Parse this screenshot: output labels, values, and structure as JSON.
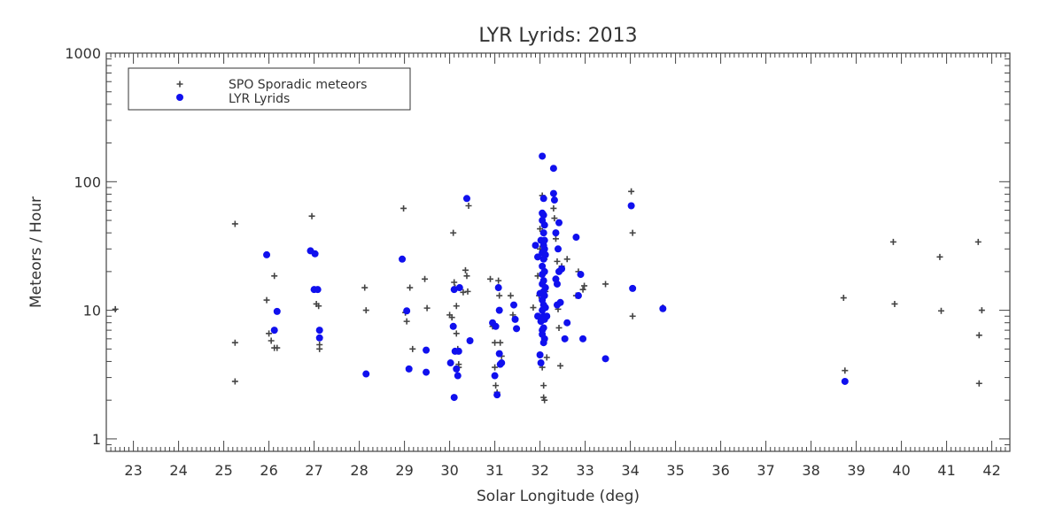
{
  "chart_data": {
    "type": "scatter",
    "title": "LYR Lyrids: 2013",
    "xlabel": "Solar Longitude (deg)",
    "ylabel": "Meteors / Hour",
    "xlim": [
      22.4,
      42.4
    ],
    "ylim": [
      0.8,
      1000
    ],
    "yscale": "log",
    "x_ticks": [
      23,
      24,
      25,
      26,
      27,
      28,
      29,
      30,
      31,
      32,
      33,
      34,
      35,
      36,
      37,
      38,
      39,
      40,
      41,
      42
    ],
    "y_ticks": [
      {
        "value": 1,
        "label": "1"
      },
      {
        "value": 10,
        "label": "10"
      },
      {
        "value": 100,
        "label": "100"
      },
      {
        "value": 1000,
        "label": "1000"
      }
    ],
    "legend_position": "top-left",
    "series": [
      {
        "name": "SPO Sporadic meteors",
        "marker": "plus",
        "color": "#444444",
        "points": [
          [
            22.6,
            10.2
          ],
          [
            25.25,
            47
          ],
          [
            25.25,
            5.6
          ],
          [
            25.25,
            2.8
          ],
          [
            25.95,
            12
          ],
          [
            26.0,
            6.6
          ],
          [
            26.05,
            5.8
          ],
          [
            26.12,
            18.5
          ],
          [
            26.12,
            5.1
          ],
          [
            26.18,
            5.1
          ],
          [
            26.95,
            54
          ],
          [
            27.02,
            14.5
          ],
          [
            27.05,
            11.2
          ],
          [
            27.1,
            10.8
          ],
          [
            27.12,
            5.4
          ],
          [
            27.12,
            5.0
          ],
          [
            28.12,
            15
          ],
          [
            28.15,
            10
          ],
          [
            28.98,
            62
          ],
          [
            29.02,
            9.6
          ],
          [
            29.05,
            8.2
          ],
          [
            29.12,
            15
          ],
          [
            29.18,
            5
          ],
          [
            29.45,
            17.5
          ],
          [
            29.5,
            10.4
          ],
          [
            30.0,
            9.2
          ],
          [
            30.05,
            8.8
          ],
          [
            30.08,
            40
          ],
          [
            30.1,
            16.5
          ],
          [
            30.12,
            15
          ],
          [
            30.15,
            10.8
          ],
          [
            30.15,
            6.6
          ],
          [
            30.18,
            5
          ],
          [
            30.2,
            3.8
          ],
          [
            30.2,
            3.6
          ],
          [
            30.3,
            13.8
          ],
          [
            30.35,
            20.5
          ],
          [
            30.38,
            18.5
          ],
          [
            30.4,
            14
          ],
          [
            30.42,
            65
          ],
          [
            30.9,
            17.5
          ],
          [
            30.95,
            7.5
          ],
          [
            31.0,
            5.6
          ],
          [
            31.0,
            3.6
          ],
          [
            31.02,
            2.6
          ],
          [
            31.05,
            2.3
          ],
          [
            31.08,
            17
          ],
          [
            31.1,
            13
          ],
          [
            31.12,
            5.6
          ],
          [
            31.15,
            4.4
          ],
          [
            31.35,
            13
          ],
          [
            31.4,
            9.2
          ],
          [
            31.85,
            10.5
          ],
          [
            31.9,
            32
          ],
          [
            31.95,
            18.5
          ],
          [
            31.98,
            13
          ],
          [
            32.0,
            43
          ],
          [
            32.0,
            30
          ],
          [
            32.02,
            8.5
          ],
          [
            32.05,
            78
          ],
          [
            32.05,
            6.4
          ],
          [
            32.05,
            3.6
          ],
          [
            32.08,
            2.6
          ],
          [
            32.08,
            2.1
          ],
          [
            32.1,
            2.0
          ],
          [
            32.1,
            25
          ],
          [
            32.12,
            14
          ],
          [
            32.15,
            4.3
          ],
          [
            32.3,
            62
          ],
          [
            32.32,
            52
          ],
          [
            32.35,
            36
          ],
          [
            32.38,
            24
          ],
          [
            32.4,
            10.2
          ],
          [
            32.42,
            7.3
          ],
          [
            32.45,
            3.7
          ],
          [
            32.48,
            22
          ],
          [
            32.6,
            25
          ],
          [
            32.8,
            13
          ],
          [
            32.85,
            20
          ],
          [
            32.9,
            19
          ],
          [
            32.95,
            14.5
          ],
          [
            32.98,
            15.5
          ],
          [
            33.45,
            16
          ],
          [
            34.02,
            84
          ],
          [
            34.05,
            40
          ],
          [
            34.05,
            9
          ],
          [
            34.72,
            10.5
          ],
          [
            38.72,
            12.5
          ],
          [
            38.75,
            3.4
          ],
          [
            39.82,
            34
          ],
          [
            39.85,
            11.2
          ],
          [
            40.85,
            26
          ],
          [
            40.88,
            9.9
          ],
          [
            41.7,
            34
          ],
          [
            41.72,
            6.4
          ],
          [
            41.72,
            2.7
          ],
          [
            41.78,
            10
          ]
        ]
      },
      {
        "name": "LYR Lyrids",
        "marker": "circle",
        "color": "#1010ee",
        "points": [
          [
            25.95,
            27
          ],
          [
            26.12,
            7
          ],
          [
            26.18,
            9.8
          ],
          [
            26.92,
            29
          ],
          [
            27.0,
            14.5
          ],
          [
            27.02,
            27.5
          ],
          [
            27.08,
            14.5
          ],
          [
            27.12,
            7
          ],
          [
            27.12,
            6.1
          ],
          [
            28.15,
            3.2
          ],
          [
            28.95,
            25
          ],
          [
            29.05,
            9.9
          ],
          [
            29.1,
            3.5
          ],
          [
            29.48,
            4.9
          ],
          [
            29.48,
            3.3
          ],
          [
            30.02,
            3.9
          ],
          [
            30.08,
            7.5
          ],
          [
            30.1,
            14.5
          ],
          [
            30.1,
            2.1
          ],
          [
            30.12,
            4.8
          ],
          [
            30.15,
            3.5
          ],
          [
            30.18,
            3.1
          ],
          [
            30.2,
            4.8
          ],
          [
            30.22,
            15
          ],
          [
            30.38,
            74
          ],
          [
            30.45,
            5.8
          ],
          [
            30.95,
            8
          ],
          [
            31.0,
            3.1
          ],
          [
            31.02,
            7.5
          ],
          [
            31.05,
            2.2
          ],
          [
            31.08,
            15
          ],
          [
            31.1,
            10
          ],
          [
            31.1,
            4.6
          ],
          [
            31.12,
            3.8
          ],
          [
            31.15,
            3.9
          ],
          [
            31.42,
            11
          ],
          [
            31.45,
            8.5
          ],
          [
            31.48,
            7.2
          ],
          [
            31.9,
            32
          ],
          [
            31.95,
            26
          ],
          [
            31.95,
            9
          ],
          [
            32.0,
            13.5
          ],
          [
            32.0,
            4.5
          ],
          [
            32.02,
            35
          ],
          [
            32.02,
            8.2
          ],
          [
            32.02,
            3.9
          ],
          [
            32.05,
            158
          ],
          [
            32.05,
            57
          ],
          [
            32.05,
            50
          ],
          [
            32.05,
            28
          ],
          [
            32.05,
            22
          ],
          [
            32.05,
            19
          ],
          [
            32.05,
            16
          ],
          [
            32.05,
            12
          ],
          [
            32.05,
            10
          ],
          [
            32.05,
            7
          ],
          [
            32.05,
            6.5
          ],
          [
            32.08,
            74
          ],
          [
            32.08,
            55
          ],
          [
            32.08,
            40
          ],
          [
            32.08,
            32
          ],
          [
            32.08,
            25
          ],
          [
            32.08,
            17
          ],
          [
            32.08,
            14
          ],
          [
            32.08,
            11
          ],
          [
            32.08,
            9
          ],
          [
            32.08,
            7.3
          ],
          [
            32.08,
            5.6
          ],
          [
            32.1,
            46
          ],
          [
            32.1,
            35
          ],
          [
            32.1,
            30
          ],
          [
            32.1,
            20
          ],
          [
            32.1,
            13
          ],
          [
            32.1,
            8.5
          ],
          [
            32.1,
            6
          ],
          [
            32.12,
            27
          ],
          [
            32.12,
            15
          ],
          [
            32.12,
            10.5
          ],
          [
            32.15,
            9
          ],
          [
            32.3,
            127
          ],
          [
            32.3,
            81
          ],
          [
            32.32,
            72
          ],
          [
            32.35,
            40
          ],
          [
            32.35,
            17.5
          ],
          [
            32.38,
            11
          ],
          [
            32.38,
            16
          ],
          [
            32.4,
            30
          ],
          [
            32.42,
            48
          ],
          [
            32.42,
            20
          ],
          [
            32.45,
            11.5
          ],
          [
            32.48,
            21
          ],
          [
            32.55,
            6
          ],
          [
            32.6,
            8
          ],
          [
            32.8,
            37
          ],
          [
            32.85,
            13
          ],
          [
            32.9,
            19
          ],
          [
            32.95,
            6
          ],
          [
            33.45,
            4.2
          ],
          [
            34.02,
            65
          ],
          [
            34.05,
            14.8
          ],
          [
            34.72,
            10.3
          ],
          [
            38.75,
            2.8
          ]
        ]
      }
    ]
  }
}
